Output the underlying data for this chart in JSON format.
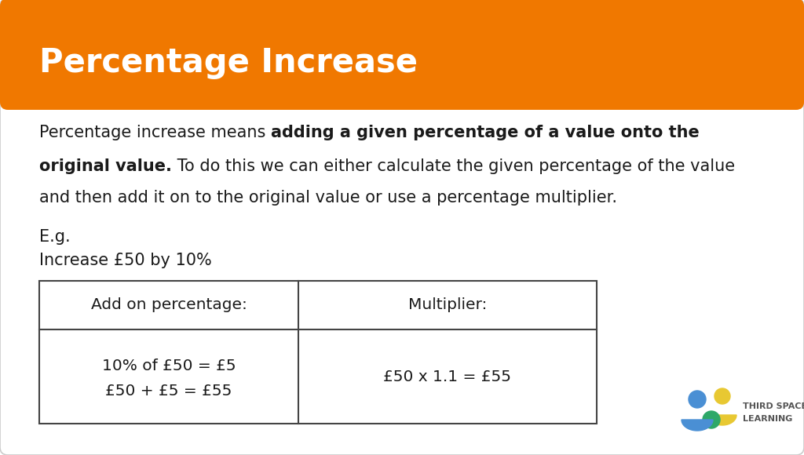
{
  "title": "Percentage Increase",
  "title_bg_color": "#F07800",
  "title_text_color": "#FFFFFF",
  "bg_color": "#FFFFFF",
  "card_edge_color": "#CCCCCC",
  "text_color": "#1a1a1a",
  "para_line1_normal": "Percentage increase means ",
  "para_line1_bold": "adding a given percentage of a value onto the",
  "para_line2_bold": "original value.",
  "para_line2_normal": " To do this we can either calculate the given percentage of the value",
  "para_line3": "and then add it on to the original value or use a percentage multiplier.",
  "eg_line1": "E.g.",
  "eg_line2": "Increase £50 by 10%",
  "table_header_left": "Add on percentage:",
  "table_header_right": "Multiplier:",
  "table_cell_left_line1": "10% of £50 = £5",
  "table_cell_left_line2": "£50 + £5 = £55",
  "table_cell_right": "£50 x 1.1 = £55",
  "table_border_color": "#444444",
  "font_size_title": 30,
  "font_size_body": 15,
  "font_size_table": 14.5,
  "logo_text1": "THIRD SPACE",
  "logo_text2": "LEARNING",
  "logo_blue": "#4A8FD4",
  "logo_yellow": "#E8C832",
  "logo_green": "#2EA868"
}
